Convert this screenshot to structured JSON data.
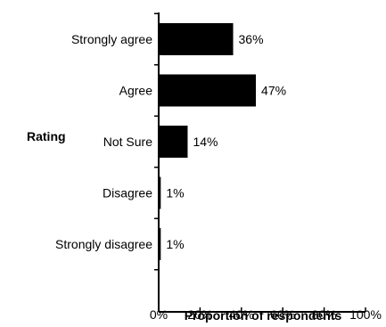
{
  "chart_data": {
    "type": "bar",
    "orientation": "horizontal",
    "title": "",
    "ylabel": "Rating",
    "xlabel": "Proportion of respondents",
    "categories": [
      "Strongly agree",
      "Agree",
      "Not Sure",
      "Disagree",
      "Strongly disagree"
    ],
    "values": [
      36,
      47,
      14,
      1,
      1
    ],
    "value_labels": [
      "36%",
      "47%",
      "14%",
      "1%",
      "1%"
    ],
    "xlim": [
      0,
      100
    ],
    "xticks": [
      0,
      20,
      40,
      60,
      80,
      100
    ],
    "xtick_labels": [
      "0%",
      "20%",
      "40%",
      "60%",
      "80%",
      "100%"
    ],
    "grid": false,
    "legend": "none",
    "bar_color": "#000000"
  }
}
